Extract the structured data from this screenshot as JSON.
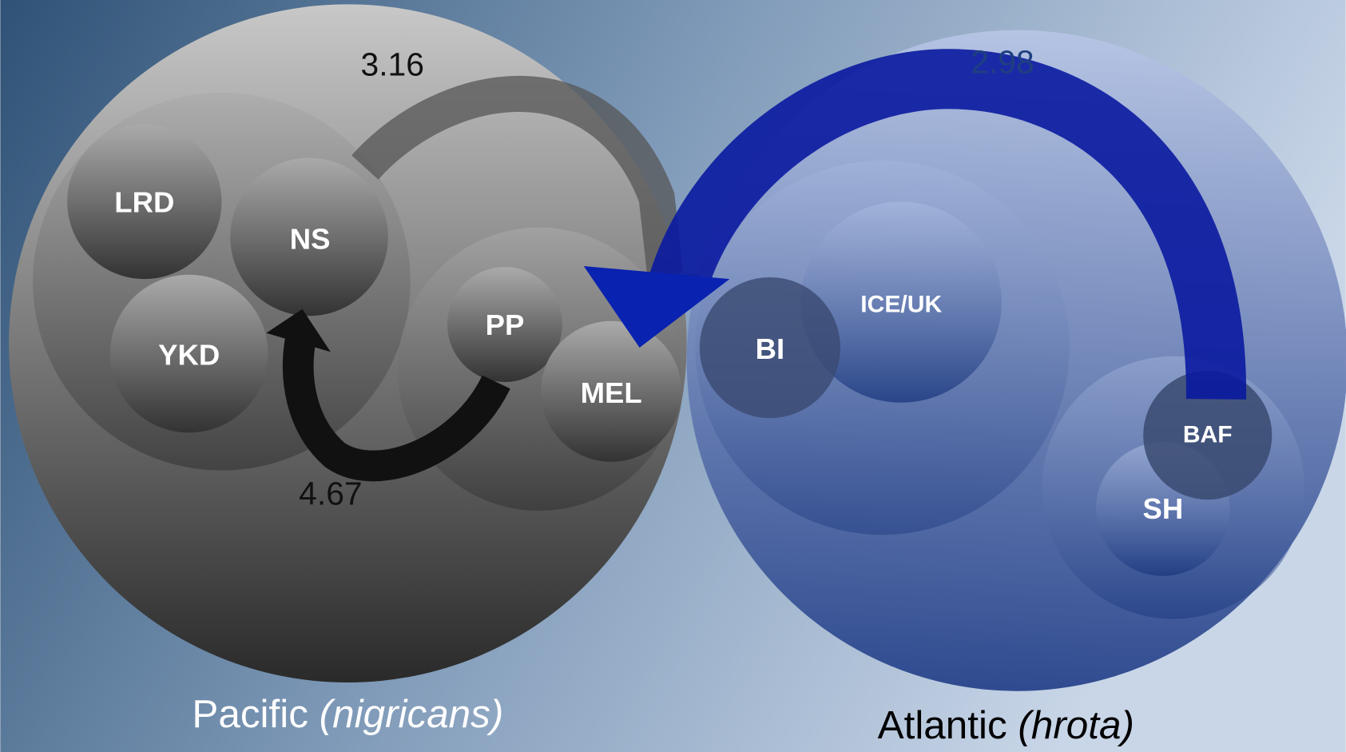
{
  "groups": [
    {
      "name": "Pacific",
      "subname": "(nigricans)"
    },
    {
      "name": "Atlantic",
      "subname": "(hrota)"
    }
  ],
  "nodes": [
    {
      "label": "LRD"
    },
    {
      "label": "NS"
    },
    {
      "label": "YKD"
    },
    {
      "label": "PP"
    },
    {
      "label": "MEL"
    },
    {
      "label": "BI"
    },
    {
      "label": "ICE/UK"
    },
    {
      "label": "BAF"
    },
    {
      "label": "SH"
    }
  ],
  "arrows": [
    {
      "label": "3.16"
    },
    {
      "label": "2.98"
    },
    {
      "label": "4.67"
    }
  ]
}
